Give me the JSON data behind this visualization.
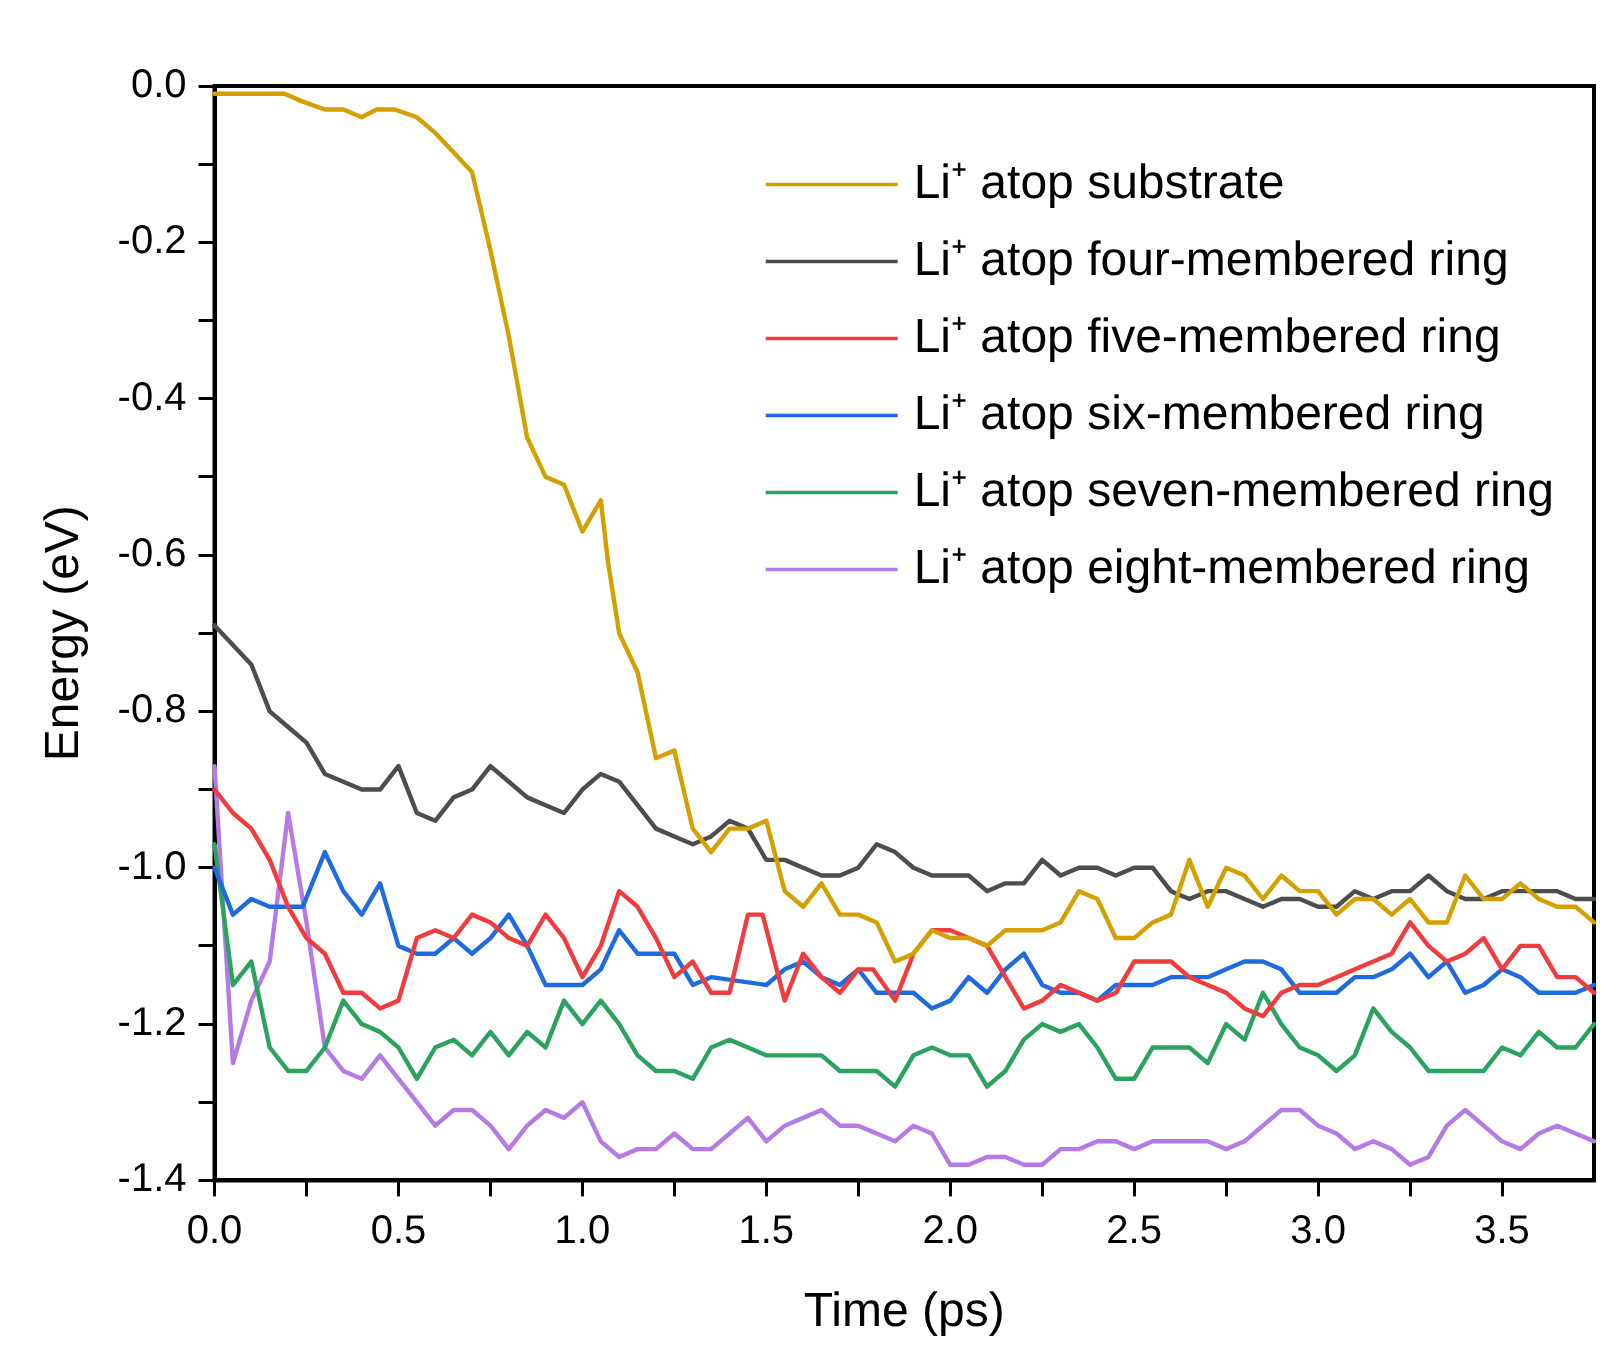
{
  "chart_data": {
    "type": "line",
    "xlabel": "Time (ps)",
    "ylabel": "Energy (eV)",
    "xlim": [
      0,
      3.75
    ],
    "ylim": [
      -1.4,
      0
    ],
    "xticks": [
      {
        "value": 0,
        "label": "0.0"
      },
      {
        "value": 0.25,
        "label": null
      },
      {
        "value": 0.5,
        "label": "0.5"
      },
      {
        "value": 0.75,
        "label": null
      },
      {
        "value": 1,
        "label": "1.0"
      },
      {
        "value": 1.25,
        "label": null
      },
      {
        "value": 1.5,
        "label": "1.5"
      },
      {
        "value": 1.75,
        "label": null
      },
      {
        "value": 2,
        "label": "2.0"
      },
      {
        "value": 2.25,
        "label": null
      },
      {
        "value": 2.5,
        "label": "2.5"
      },
      {
        "value": 2.75,
        "label": null
      },
      {
        "value": 3,
        "label": "3.0"
      },
      {
        "value": 3.25,
        "label": null
      },
      {
        "value": 3.5,
        "label": "3.5"
      }
    ],
    "yticks": [
      {
        "value": 0,
        "label": "0.0"
      },
      {
        "value": -0.1,
        "label": null
      },
      {
        "value": -0.2,
        "label": "-0.2"
      },
      {
        "value": -0.3,
        "label": null
      },
      {
        "value": -0.4,
        "label": "-0.4"
      },
      {
        "value": -0.5,
        "label": null
      },
      {
        "value": -0.6,
        "label": "-0.6"
      },
      {
        "value": -0.7,
        "label": null
      },
      {
        "value": -0.8,
        "label": "-0.8"
      },
      {
        "value": -0.9,
        "label": null
      },
      {
        "value": -1,
        "label": "-1.0"
      },
      {
        "value": -1.1,
        "label": null
      },
      {
        "value": -1.2,
        "label": "-1.2"
      },
      {
        "value": -1.3,
        "label": null
      },
      {
        "value": -1.4,
        "label": "-1.4"
      }
    ],
    "grid": false,
    "legend": "top right",
    "marker": "none",
    "line_style": "solid",
    "series": [
      {
        "name": "Li⁺ atop substrate",
        "color": "#d4a000",
        "x": [
          0,
          0.19,
          0.24,
          0.3,
          0.35,
          0.4,
          0.44,
          0.49,
          0.55,
          0.6,
          0.64,
          0.7,
          0.75,
          0.8,
          0.85,
          0.9,
          0.95,
          1,
          1.05,
          1.07,
          1.1,
          1.15,
          1.2,
          1.25,
          1.3,
          1.35,
          1.4,
          1.45,
          1.5,
          1.55,
          1.6,
          1.65,
          1.7,
          1.75,
          1.8,
          1.85,
          1.9,
          1.95,
          2,
          2.05,
          2.1,
          2.15,
          2.2,
          2.25,
          2.3,
          2.35,
          2.4,
          2.45,
          2.5,
          2.55,
          2.6,
          2.65,
          2.7,
          2.75,
          2.8,
          2.85,
          2.9,
          2.95,
          3,
          3.05,
          3.1,
          3.15,
          3.2,
          3.25,
          3.3,
          3.35,
          3.4,
          3.45,
          3.5,
          3.55,
          3.6,
          3.65,
          3.7,
          3.75
        ],
        "values": [
          -0.01,
          -0.01,
          -0.02,
          -0.03,
          -0.03,
          -0.04,
          -0.03,
          -0.03,
          -0.04,
          -0.06,
          -0.08,
          -0.11,
          -0.21,
          -0.32,
          -0.45,
          -0.5,
          -0.51,
          -0.57,
          -0.53,
          -0.61,
          -0.7,
          -0.75,
          -0.86,
          -0.85,
          -0.95,
          -0.98,
          -0.95,
          -0.95,
          -0.94,
          -1.03,
          -1.05,
          -1.02,
          -1.06,
          -1.06,
          -1.07,
          -1.12,
          -1.11,
          -1.08,
          -1.09,
          -1.09,
          -1.1,
          -1.08,
          -1.08,
          -1.08,
          -1.07,
          -1.03,
          -1.04,
          -1.09,
          -1.09,
          -1.07,
          -1.06,
          -0.99,
          -1.05,
          -1,
          -1.01,
          -1.04,
          -1.01,
          -1.03,
          -1.03,
          -1.06,
          -1.04,
          -1.04,
          -1.06,
          -1.04,
          -1.07,
          -1.07,
          -1.01,
          -1.04,
          -1.04,
          -1.02,
          -1.04,
          -1.05,
          -1.05,
          -1.07
        ]
      },
      {
        "name": "Li⁺ atop four-membered ring",
        "color": "#4d4d4d",
        "x": [
          0,
          0.1,
          0.15,
          0.2,
          0.25,
          0.3,
          0.35,
          0.4,
          0.45,
          0.5,
          0.55,
          0.6,
          0.65,
          0.7,
          0.75,
          0.8,
          0.85,
          0.9,
          0.95,
          1,
          1.05,
          1.1,
          1.15,
          1.2,
          1.25,
          1.3,
          1.35,
          1.4,
          1.45,
          1.5,
          1.55,
          1.6,
          1.65,
          1.7,
          1.75,
          1.8,
          1.85,
          1.9,
          1.95,
          2,
          2.05,
          2.1,
          2.15,
          2.2,
          2.25,
          2.3,
          2.35,
          2.4,
          2.45,
          2.5,
          2.55,
          2.6,
          2.65,
          2.7,
          2.75,
          2.8,
          2.85,
          2.9,
          2.95,
          3,
          3.05,
          3.1,
          3.15,
          3.2,
          3.25,
          3.3,
          3.35,
          3.4,
          3.45,
          3.5,
          3.55,
          3.6,
          3.65,
          3.7,
          3.75
        ],
        "values": [
          -0.69,
          -0.74,
          -0.8,
          -0.82,
          -0.84,
          -0.88,
          -0.89,
          -0.9,
          -0.9,
          -0.87,
          -0.93,
          -0.94,
          -0.91,
          -0.9,
          -0.87,
          -0.89,
          -0.91,
          -0.92,
          -0.93,
          -0.9,
          -0.88,
          -0.89,
          -0.92,
          -0.95,
          -0.96,
          -0.97,
          -0.96,
          -0.94,
          -0.95,
          -0.99,
          -0.99,
          -1,
          -1.01,
          -1.01,
          -1,
          -0.97,
          -0.98,
          -1,
          -1.01,
          -1.01,
          -1.01,
          -1.03,
          -1.02,
          -1.02,
          -0.99,
          -1.01,
          -1,
          -1,
          -1.01,
          -1,
          -1,
          -1.03,
          -1.04,
          -1.03,
          -1.03,
          -1.04,
          -1.05,
          -1.04,
          -1.04,
          -1.05,
          -1.05,
          -1.03,
          -1.04,
          -1.03,
          -1.03,
          -1.01,
          -1.03,
          -1.04,
          -1.04,
          -1.03,
          -1.03,
          -1.03,
          -1.03,
          -1.04,
          -1.04
        ]
      },
      {
        "name": "Li⁺ atop five-membered ring",
        "color": "#f03c3c",
        "x": [
          0,
          0.05,
          0.1,
          0.15,
          0.2,
          0.25,
          0.3,
          0.35,
          0.4,
          0.45,
          0.5,
          0.55,
          0.6,
          0.65,
          0.7,
          0.75,
          0.8,
          0.85,
          0.9,
          0.95,
          1,
          1.05,
          1.1,
          1.15,
          1.2,
          1.25,
          1.3,
          1.35,
          1.4,
          1.45,
          1.49,
          1.55,
          1.6,
          1.65,
          1.7,
          1.75,
          1.79,
          1.85,
          1.9,
          1.95,
          2,
          2.05,
          2.1,
          2.15,
          2.2,
          2.25,
          2.3,
          2.35,
          2.4,
          2.45,
          2.5,
          2.55,
          2.6,
          2.65,
          2.7,
          2.75,
          2.8,
          2.85,
          2.9,
          2.95,
          3,
          3.05,
          3.1,
          3.15,
          3.2,
          3.25,
          3.3,
          3.35,
          3.4,
          3.45,
          3.5,
          3.55,
          3.6,
          3.65,
          3.7,
          3.75
        ],
        "values": [
          -0.9,
          -0.93,
          -0.95,
          -0.99,
          -1.05,
          -1.09,
          -1.11,
          -1.16,
          -1.16,
          -1.18,
          -1.17,
          -1.09,
          -1.08,
          -1.09,
          -1.06,
          -1.07,
          -1.09,
          -1.1,
          -1.06,
          -1.09,
          -1.14,
          -1.1,
          -1.03,
          -1.05,
          -1.09,
          -1.14,
          -1.12,
          -1.16,
          -1.16,
          -1.06,
          -1.06,
          -1.17,
          -1.11,
          -1.14,
          -1.16,
          -1.13,
          -1.13,
          -1.17,
          -1.11,
          -1.08,
          -1.08,
          -1.09,
          -1.1,
          -1.14,
          -1.18,
          -1.17,
          -1.15,
          -1.16,
          -1.17,
          -1.16,
          -1.12,
          -1.12,
          -1.12,
          -1.14,
          -1.15,
          -1.16,
          -1.18,
          -1.19,
          -1.16,
          -1.15,
          -1.15,
          -1.14,
          -1.13,
          -1.12,
          -1.11,
          -1.07,
          -1.1,
          -1.12,
          -1.11,
          -1.09,
          -1.13,
          -1.1,
          -1.1,
          -1.14,
          -1.14,
          -1.16
        ]
      },
      {
        "name": "Li⁺ atop six-membered ring",
        "color": "#1e6be0",
        "x": [
          0,
          0.05,
          0.1,
          0.15,
          0.2,
          0.24,
          0.3,
          0.35,
          0.4,
          0.45,
          0.5,
          0.55,
          0.6,
          0.65,
          0.7,
          0.75,
          0.8,
          0.85,
          0.9,
          0.95,
          1,
          1.05,
          1.1,
          1.15,
          1.2,
          1.25,
          1.3,
          1.35,
          1.5,
          1.55,
          1.6,
          1.65,
          1.7,
          1.75,
          1.8,
          1.85,
          1.9,
          1.95,
          2,
          2.05,
          2.1,
          2.15,
          2.2,
          2.25,
          2.3,
          2.35,
          2.4,
          2.45,
          2.5,
          2.55,
          2.6,
          2.65,
          2.7,
          2.75,
          2.8,
          2.85,
          2.9,
          2.95,
          3,
          3.05,
          3.1,
          3.15,
          3.2,
          3.25,
          3.3,
          3.35,
          3.4,
          3.45,
          3.5,
          3.55,
          3.6,
          3.65,
          3.7,
          3.75
        ],
        "values": [
          -1,
          -1.06,
          -1.04,
          -1.05,
          -1.05,
          -1.05,
          -0.98,
          -1.03,
          -1.06,
          -1.02,
          -1.1,
          -1.11,
          -1.11,
          -1.09,
          -1.11,
          -1.09,
          -1.06,
          -1.1,
          -1.15,
          -1.15,
          -1.15,
          -1.13,
          -1.08,
          -1.11,
          -1.11,
          -1.11,
          -1.15,
          -1.14,
          -1.15,
          -1.13,
          -1.12,
          -1.14,
          -1.15,
          -1.13,
          -1.16,
          -1.16,
          -1.16,
          -1.18,
          -1.17,
          -1.14,
          -1.16,
          -1.13,
          -1.11,
          -1.15,
          -1.16,
          -1.16,
          -1.17,
          -1.15,
          -1.15,
          -1.15,
          -1.14,
          -1.14,
          -1.14,
          -1.13,
          -1.12,
          -1.12,
          -1.13,
          -1.16,
          -1.16,
          -1.16,
          -1.14,
          -1.14,
          -1.13,
          -1.11,
          -1.14,
          -1.12,
          -1.16,
          -1.15,
          -1.13,
          -1.14,
          -1.16,
          -1.16,
          -1.16,
          -1.15
        ]
      },
      {
        "name": "Li⁺ atop seven-membered ring",
        "color": "#2ca25f",
        "x": [
          0,
          0.05,
          0.1,
          0.15,
          0.2,
          0.25,
          0.3,
          0.35,
          0.4,
          0.45,
          0.5,
          0.55,
          0.6,
          0.65,
          0.7,
          0.75,
          0.8,
          0.85,
          0.9,
          0.95,
          1,
          1.05,
          1.1,
          1.15,
          1.2,
          1.25,
          1.3,
          1.35,
          1.4,
          1.45,
          1.5,
          1.55,
          1.6,
          1.65,
          1.7,
          1.75,
          1.8,
          1.85,
          1.9,
          1.95,
          2,
          2.05,
          2.1,
          2.15,
          2.2,
          2.25,
          2.3,
          2.35,
          2.4,
          2.45,
          2.5,
          2.55,
          2.6,
          2.65,
          2.7,
          2.75,
          2.8,
          2.85,
          2.9,
          2.95,
          3,
          3.05,
          3.1,
          3.15,
          3.2,
          3.25,
          3.3,
          3.35,
          3.4,
          3.45,
          3.5,
          3.55,
          3.6,
          3.65,
          3.7,
          3.75
        ],
        "values": [
          -0.97,
          -1.15,
          -1.12,
          -1.23,
          -1.26,
          -1.26,
          -1.23,
          -1.17,
          -1.2,
          -1.21,
          -1.23,
          -1.27,
          -1.23,
          -1.22,
          -1.24,
          -1.21,
          -1.24,
          -1.21,
          -1.23,
          -1.17,
          -1.2,
          -1.17,
          -1.2,
          -1.24,
          -1.26,
          -1.26,
          -1.27,
          -1.23,
          -1.22,
          -1.23,
          -1.24,
          -1.24,
          -1.24,
          -1.24,
          -1.26,
          -1.26,
          -1.26,
          -1.28,
          -1.24,
          -1.23,
          -1.24,
          -1.24,
          -1.28,
          -1.26,
          -1.22,
          -1.2,
          -1.21,
          -1.2,
          -1.23,
          -1.27,
          -1.27,
          -1.23,
          -1.23,
          -1.23,
          -1.25,
          -1.2,
          -1.22,
          -1.16,
          -1.2,
          -1.23,
          -1.24,
          -1.26,
          -1.24,
          -1.18,
          -1.21,
          -1.23,
          -1.26,
          -1.26,
          -1.26,
          -1.26,
          -1.23,
          -1.24,
          -1.21,
          -1.23,
          -1.23,
          -1.2
        ]
      },
      {
        "name": "Li⁺ atop eight-membered ring",
        "color": "#b57ae6",
        "x": [
          0,
          0.05,
          0.1,
          0.15,
          0.2,
          0.25,
          0.3,
          0.35,
          0.4,
          0.45,
          0.5,
          0.55,
          0.6,
          0.65,
          0.7,
          0.75,
          0.8,
          0.85,
          0.9,
          0.95,
          1,
          1.05,
          1.1,
          1.15,
          1.2,
          1.25,
          1.3,
          1.35,
          1.45,
          1.5,
          1.55,
          1.6,
          1.65,
          1.7,
          1.75,
          1.8,
          1.85,
          1.9,
          1.95,
          2,
          2.05,
          2.1,
          2.15,
          2.2,
          2.25,
          2.3,
          2.35,
          2.4,
          2.45,
          2.5,
          2.55,
          2.6,
          2.65,
          2.7,
          2.75,
          2.8,
          2.85,
          2.9,
          2.95,
          3,
          3.05,
          3.1,
          3.15,
          3.2,
          3.25,
          3.3,
          3.35,
          3.4,
          3.45,
          3.5,
          3.55,
          3.6,
          3.65,
          3.7,
          3.75
        ],
        "values": [
          -0.87,
          -1.25,
          -1.17,
          -1.12,
          -0.93,
          -1.07,
          -1.23,
          -1.26,
          -1.27,
          -1.24,
          -1.27,
          -1.3,
          -1.33,
          -1.31,
          -1.31,
          -1.33,
          -1.36,
          -1.33,
          -1.31,
          -1.32,
          -1.3,
          -1.35,
          -1.37,
          -1.36,
          -1.36,
          -1.34,
          -1.36,
          -1.36,
          -1.32,
          -1.35,
          -1.33,
          -1.32,
          -1.31,
          -1.33,
          -1.33,
          -1.34,
          -1.35,
          -1.33,
          -1.34,
          -1.38,
          -1.38,
          -1.37,
          -1.37,
          -1.38,
          -1.38,
          -1.36,
          -1.36,
          -1.35,
          -1.35,
          -1.36,
          -1.35,
          -1.35,
          -1.35,
          -1.35,
          -1.36,
          -1.35,
          -1.33,
          -1.31,
          -1.31,
          -1.33,
          -1.34,
          -1.36,
          -1.35,
          -1.36,
          -1.38,
          -1.37,
          -1.33,
          -1.31,
          -1.33,
          -1.35,
          -1.36,
          -1.34,
          -1.33,
          -1.34,
          -1.35
        ]
      }
    ]
  }
}
